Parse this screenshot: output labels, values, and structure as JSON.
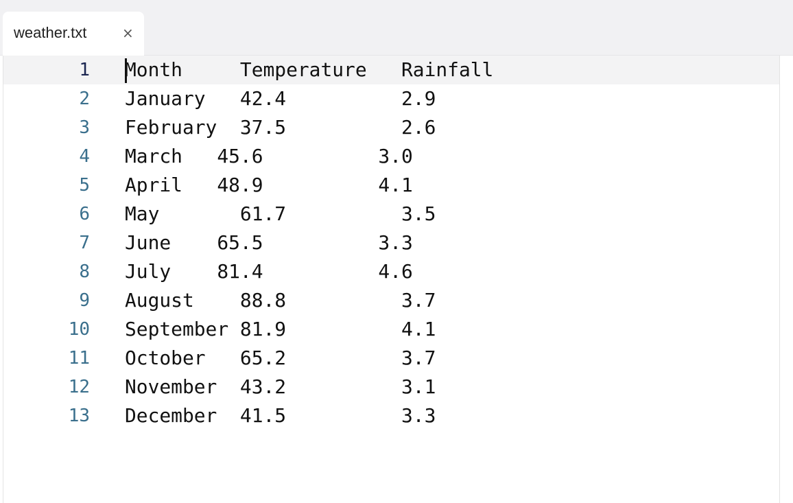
{
  "tab": {
    "title": "weather.txt",
    "close": "×"
  },
  "editor": {
    "current_line": 1,
    "lines": [
      {
        "number": 1,
        "text": "Month     Temperature   Rainfall"
      },
      {
        "number": 2,
        "text": "January   42.4          2.9"
      },
      {
        "number": 3,
        "text": "February  37.5          2.6"
      },
      {
        "number": 4,
        "text": "March   45.6          3.0"
      },
      {
        "number": 5,
        "text": "April   48.9          4.1"
      },
      {
        "number": 6,
        "text": "May       61.7          3.5"
      },
      {
        "number": 7,
        "text": "June    65.5          3.3"
      },
      {
        "number": 8,
        "text": "July    81.4          4.6"
      },
      {
        "number": 9,
        "text": "August    88.8          3.7"
      },
      {
        "number": 10,
        "text": "September 81.9          4.1"
      },
      {
        "number": 11,
        "text": "October   65.2          3.7"
      },
      {
        "number": 12,
        "text": "November  43.2          3.1"
      },
      {
        "number": 13,
        "text": "December  41.5          3.3"
      }
    ]
  }
}
